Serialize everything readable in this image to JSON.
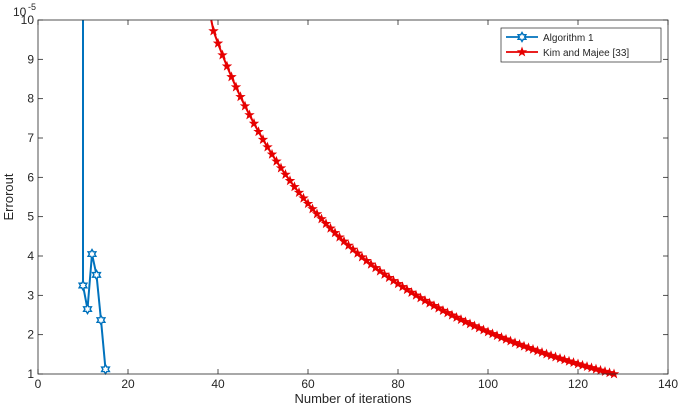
{
  "chart_data": {
    "type": "line",
    "title": "",
    "xlabel": "Number of iterations",
    "ylabel": "Errorout",
    "y_exponent_base": "10",
    "y_exponent_power": "-5",
    "xlim": [
      0,
      140
    ],
    "ylim": [
      1,
      10
    ],
    "x_ticks": [
      0,
      20,
      40,
      60,
      80,
      100,
      120,
      140
    ],
    "y_ticks": [
      1,
      2,
      3,
      4,
      5,
      6,
      7,
      8,
      9,
      10
    ],
    "grid": false,
    "legend_placement": "top-right",
    "series": [
      {
        "name": "Algorithm 1",
        "color": "#0072BD",
        "marker": "hexagram",
        "line_x": [
          10,
          10,
          11,
          12,
          13,
          14,
          15
        ],
        "line_y": [
          10.0,
          3.25,
          2.65,
          4.05,
          3.52,
          2.37,
          1.12
        ],
        "marker_x": [
          10,
          11,
          12,
          13,
          14,
          15
        ],
        "marker_y": [
          3.25,
          2.65,
          4.05,
          3.52,
          2.37,
          1.12
        ]
      },
      {
        "name": "Kim and Majee [33]",
        "color": "#E60000",
        "marker": "star",
        "x_start": 39,
        "x_end": 128,
        "y_start": 9.72,
        "y_end": 1.0,
        "decay_shape": "1/x",
        "line_x_start": 38.5,
        "line_y_start": 10.0
      }
    ]
  }
}
